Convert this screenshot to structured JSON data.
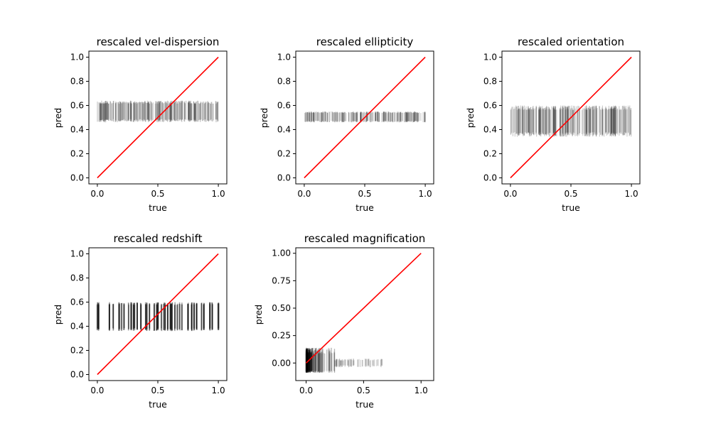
{
  "figure": {
    "background": "#ffffff",
    "identity_line_color": "#ff0000",
    "band_color": "#000000"
  },
  "chart_data": [
    {
      "type": "scatter",
      "title": "rescaled vel-dispersion",
      "xlabel": "true",
      "ylabel": "pred",
      "xlim": [
        -0.07,
        1.07
      ],
      "ylim": [
        -0.05,
        1.05
      ],
      "xticks": [
        0.0,
        0.5,
        1.0
      ],
      "xtick_labels": [
        "0.0",
        "0.5",
        "1.0"
      ],
      "yticks": [
        0.0,
        0.2,
        0.4,
        0.6,
        0.8,
        1.0
      ],
      "ytick_labels": [
        "0.0",
        "0.2",
        "0.4",
        "0.6",
        "0.8",
        "1.0"
      ],
      "grid": false,
      "series": [
        {
          "kind": "vertical-spread",
          "x_range": [
            0.0,
            1.0
          ],
          "y_range": [
            0.46,
            0.64
          ],
          "density": "dense",
          "opacity": 0.22,
          "count": 260,
          "seed": 11
        },
        {
          "kind": "line",
          "x": [
            0,
            1
          ],
          "y": [
            0,
            1
          ]
        }
      ]
    },
    {
      "type": "scatter",
      "title": "rescaled ellipticity",
      "xlabel": "true",
      "ylabel": "pred",
      "xlim": [
        -0.07,
        1.07
      ],
      "ylim": [
        -0.05,
        1.05
      ],
      "xticks": [
        0.0,
        0.5,
        1.0
      ],
      "xtick_labels": [
        "0.0",
        "0.5",
        "1.0"
      ],
      "yticks": [
        0.0,
        0.2,
        0.4,
        0.6,
        0.8,
        1.0
      ],
      "ytick_labels": [
        "0.0",
        "0.2",
        "0.4",
        "0.6",
        "0.8",
        "1.0"
      ],
      "grid": false,
      "series": [
        {
          "kind": "vertical-spread",
          "x_range": [
            0.0,
            1.0
          ],
          "y_range": [
            0.46,
            0.55
          ],
          "density": "dense",
          "opacity": 0.2,
          "count": 260,
          "seed": 23
        },
        {
          "kind": "line",
          "x": [
            0,
            1
          ],
          "y": [
            0,
            1
          ]
        }
      ]
    },
    {
      "type": "scatter",
      "title": "rescaled orientation",
      "xlabel": "true",
      "ylabel": "pred",
      "xlim": [
        -0.07,
        1.07
      ],
      "ylim": [
        -0.05,
        1.05
      ],
      "xticks": [
        0.0,
        0.5,
        1.0
      ],
      "xtick_labels": [
        "0.0",
        "0.5",
        "1.0"
      ],
      "yticks": [
        0.0,
        0.2,
        0.4,
        0.6,
        0.8,
        1.0
      ],
      "ytick_labels": [
        "0.0",
        "0.2",
        "0.4",
        "0.6",
        "0.8",
        "1.0"
      ],
      "grid": false,
      "series": [
        {
          "kind": "vertical-spread",
          "x_range": [
            0.0,
            1.0
          ],
          "y_range": [
            0.34,
            0.6
          ],
          "density": "dense",
          "opacity": 0.2,
          "count": 280,
          "seed": 37
        },
        {
          "kind": "line",
          "x": [
            0,
            1
          ],
          "y": [
            0,
            1
          ]
        }
      ]
    },
    {
      "type": "scatter",
      "title": "rescaled redshift",
      "xlabel": "true",
      "ylabel": "pred",
      "xlim": [
        -0.07,
        1.07
      ],
      "ylim": [
        -0.05,
        1.05
      ],
      "xticks": [
        0.0,
        0.5,
        1.0
      ],
      "xtick_labels": [
        "0.0",
        "0.5",
        "1.0"
      ],
      "yticks": [
        0.0,
        0.2,
        0.4,
        0.6,
        0.8,
        1.0
      ],
      "ytick_labels": [
        "0.0",
        "0.2",
        "0.4",
        "0.6",
        "0.8",
        "1.0"
      ],
      "grid": false,
      "series": [
        {
          "kind": "vertical-spread-discrete",
          "x_values": [
            0.0,
            0.01,
            0.1,
            0.13,
            0.18,
            0.2,
            0.22,
            0.26,
            0.28,
            0.3,
            0.31,
            0.33,
            0.36,
            0.4,
            0.41,
            0.43,
            0.47,
            0.49,
            0.5,
            0.53,
            0.55,
            0.56,
            0.58,
            0.6,
            0.61,
            0.62,
            0.64,
            0.66,
            0.68,
            0.7,
            0.75,
            0.78,
            0.8,
            0.82,
            0.86,
            0.88,
            0.93,
            0.95,
            1.0
          ],
          "y_range": [
            0.36,
            0.6
          ],
          "opacity": 0.35,
          "seed": 41
        },
        {
          "kind": "line",
          "x": [
            0,
            1
          ],
          "y": [
            0,
            1
          ]
        }
      ]
    },
    {
      "type": "scatter",
      "title": "rescaled magnification",
      "xlabel": "true",
      "ylabel": "pred",
      "xlim": [
        -0.09,
        1.11
      ],
      "ylim": [
        -0.16,
        1.05
      ],
      "xticks": [
        0.0,
        0.5,
        1.0
      ],
      "xtick_labels": [
        "0.0",
        "0.5",
        "1.0"
      ],
      "yticks": [
        0.0,
        0.25,
        0.5,
        0.75,
        1.0
      ],
      "ytick_labels": [
        "0.00",
        "0.25",
        "0.50",
        "0.75",
        "1.00"
      ],
      "grid": false,
      "series": [
        {
          "kind": "vertical-spread-skewed",
          "x_range": [
            0.0,
            0.66
          ],
          "y_range": [
            -0.09,
            0.14
          ],
          "opacity": 0.18,
          "count": 220,
          "seed": 53
        },
        {
          "kind": "line",
          "x": [
            0,
            1
          ],
          "y": [
            0,
            1
          ]
        }
      ]
    }
  ]
}
